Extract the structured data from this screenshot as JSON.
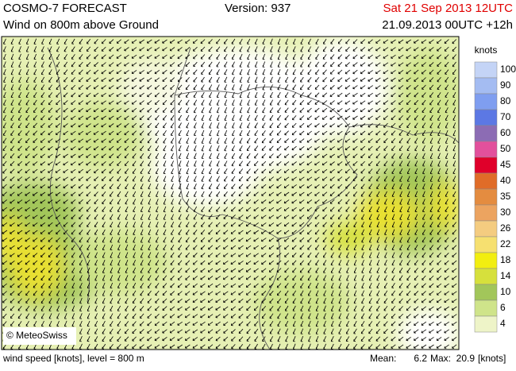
{
  "header": {
    "title": "COSMO-7 FORECAST",
    "version": "Version: 937",
    "valid_time": "Sat 21 Sep 2013 12UTC",
    "subtitle": "Wind on 800m above Ground",
    "run": "21.09.2013 00UTC +12h"
  },
  "legend": {
    "title": "knots",
    "items": [
      {
        "label": 100,
        "color": "#c4d4f6"
      },
      {
        "label": 90,
        "color": "#a4bcf2"
      },
      {
        "label": 80,
        "color": "#7f9ef0"
      },
      {
        "label": 70,
        "color": "#5c78e4"
      },
      {
        "label": 60,
        "color": "#8c6cb4"
      },
      {
        "label": 50,
        "color": "#e2509c"
      },
      {
        "label": 45,
        "color": "#e0002a"
      },
      {
        "label": 40,
        "color": "#e06c28"
      },
      {
        "label": 35,
        "color": "#e48c40"
      },
      {
        "label": 30,
        "color": "#eca460"
      },
      {
        "label": 26,
        "color": "#f4cc80"
      },
      {
        "label": 22,
        "color": "#f6e070"
      },
      {
        "label": 18,
        "color": "#f2ee10"
      },
      {
        "label": 14,
        "color": "#d6e03c"
      },
      {
        "label": 10,
        "color": "#a2c65a"
      },
      {
        "label": 6,
        "color": "#cfe48a"
      },
      {
        "label": 4,
        "color": "#eef4c8"
      }
    ]
  },
  "copyright": "© MeteoSwiss",
  "footer": {
    "left": "wind speed [knots], level = 800 m",
    "mean_label": "Mean:",
    "mean": 6.2,
    "max_label": "Max:",
    "max": 20.9,
    "unit": "[knots]"
  }
}
